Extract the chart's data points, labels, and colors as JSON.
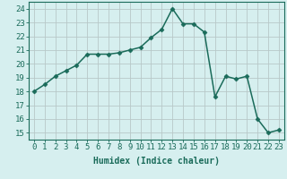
{
  "x": [
    0,
    1,
    2,
    3,
    4,
    5,
    6,
    7,
    8,
    9,
    10,
    11,
    12,
    13,
    14,
    15,
    16,
    17,
    18,
    19,
    20,
    21,
    22,
    23
  ],
  "y": [
    18.0,
    18.5,
    19.1,
    19.5,
    19.9,
    20.7,
    20.7,
    20.7,
    20.8,
    21.0,
    21.2,
    21.9,
    22.5,
    24.0,
    22.9,
    22.9,
    22.3,
    17.6,
    19.1,
    18.9,
    19.1,
    16.0,
    15.0,
    15.2
  ],
  "line_color": "#1a6b5a",
  "marker": "D",
  "marker_size": 2.5,
  "line_width": 1.1,
  "bg_color": "#d6efef",
  "grid_color": "#b8c8c8",
  "xlabel": "Humidex (Indice chaleur)",
  "xlim": [
    -0.5,
    23.5
  ],
  "ylim": [
    14.5,
    24.5
  ],
  "yticks": [
    15,
    16,
    17,
    18,
    19,
    20,
    21,
    22,
    23,
    24
  ],
  "xticks": [
    0,
    1,
    2,
    3,
    4,
    5,
    6,
    7,
    8,
    9,
    10,
    11,
    12,
    13,
    14,
    15,
    16,
    17,
    18,
    19,
    20,
    21,
    22,
    23
  ],
  "font_size": 6.5,
  "xlabel_fontsize": 7.0
}
